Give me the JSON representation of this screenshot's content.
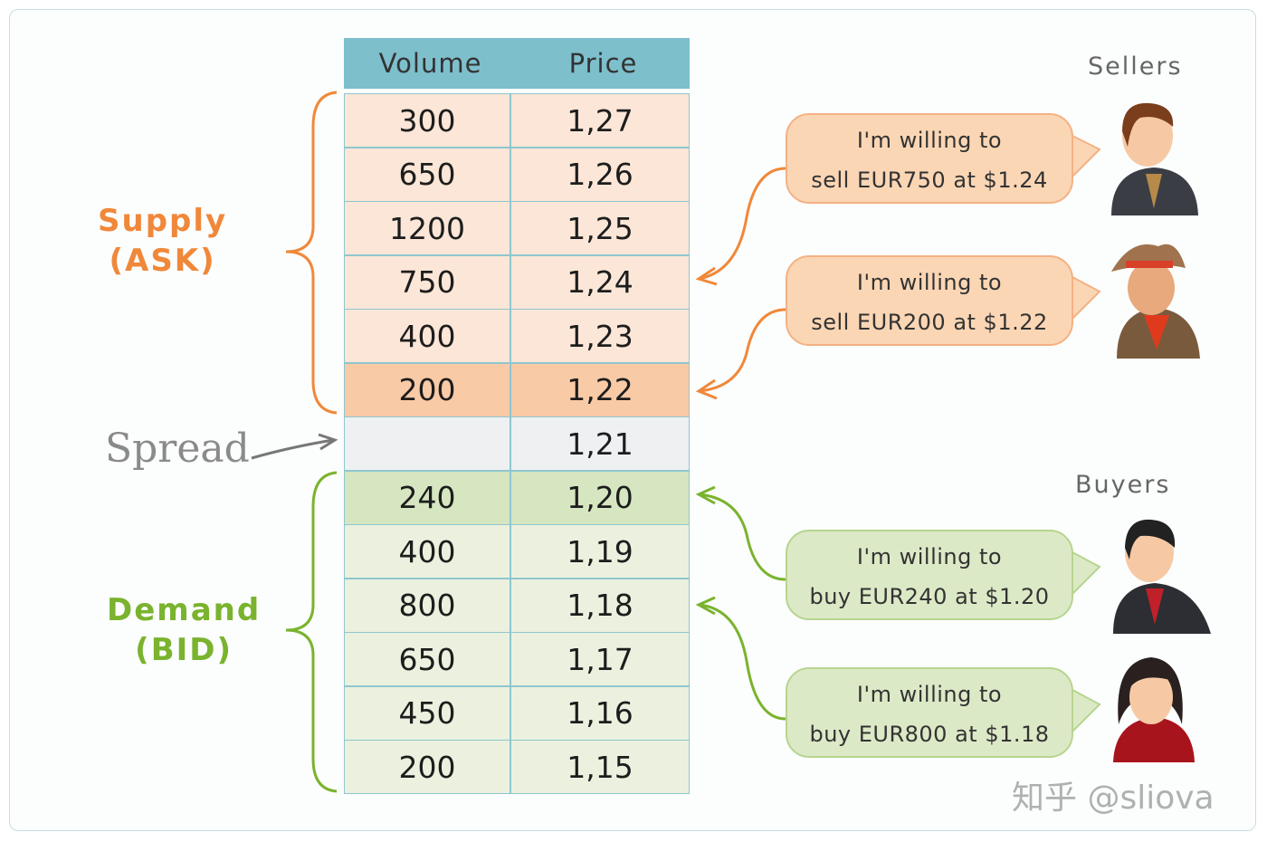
{
  "table": {
    "headers": [
      "Volume",
      "Price"
    ],
    "rows": [
      {
        "volume": "300",
        "price": "1,27",
        "kind": "ask"
      },
      {
        "volume": "650",
        "price": "1,26",
        "kind": "ask"
      },
      {
        "volume": "1200",
        "price": "1,25",
        "kind": "ask"
      },
      {
        "volume": "750",
        "price": "1,24",
        "kind": "ask"
      },
      {
        "volume": "400",
        "price": "1,23",
        "kind": "ask"
      },
      {
        "volume": "200",
        "price": "1,22",
        "kind": "ask-best"
      },
      {
        "volume": "",
        "price": "1,21",
        "kind": "spread"
      },
      {
        "volume": "240",
        "price": "1,20",
        "kind": "bid-best"
      },
      {
        "volume": "400",
        "price": "1,19",
        "kind": "bid"
      },
      {
        "volume": "800",
        "price": "1,18",
        "kind": "bid"
      },
      {
        "volume": "650",
        "price": "1,17",
        "kind": "bid"
      },
      {
        "volume": "450",
        "price": "1,16",
        "kind": "bid"
      },
      {
        "volume": "200",
        "price": "1,15",
        "kind": "bid"
      }
    ]
  },
  "labels": {
    "supply": "Supply",
    "supply_sub": "(ASK)",
    "demand": "Demand",
    "demand_sub": "(BID)",
    "spread": "Spread",
    "sellers": "Sellers",
    "buyers": "Buyers"
  },
  "bubbles": [
    {
      "line1": "I'm willing to",
      "line2": "sell EUR750 at $1.24"
    },
    {
      "line1": "I'm willing to",
      "line2": "sell EUR200 at $1.22"
    },
    {
      "line1": "I'm willing to",
      "line2": "buy EUR240 at $1.20"
    },
    {
      "line1": "I'm willing to",
      "line2": "buy EUR800 at $1.18"
    }
  ],
  "watermark": "知乎 @sliova",
  "colors": {
    "header": "#7ebfcc",
    "ask": "#fbe6d7",
    "ask_best": "#f9caa6",
    "spread": "#eef0f2",
    "bid": "#ebf1de",
    "bid_best": "#d6e6c0",
    "supply": "#f0883a",
    "demand": "#7ab32e"
  }
}
